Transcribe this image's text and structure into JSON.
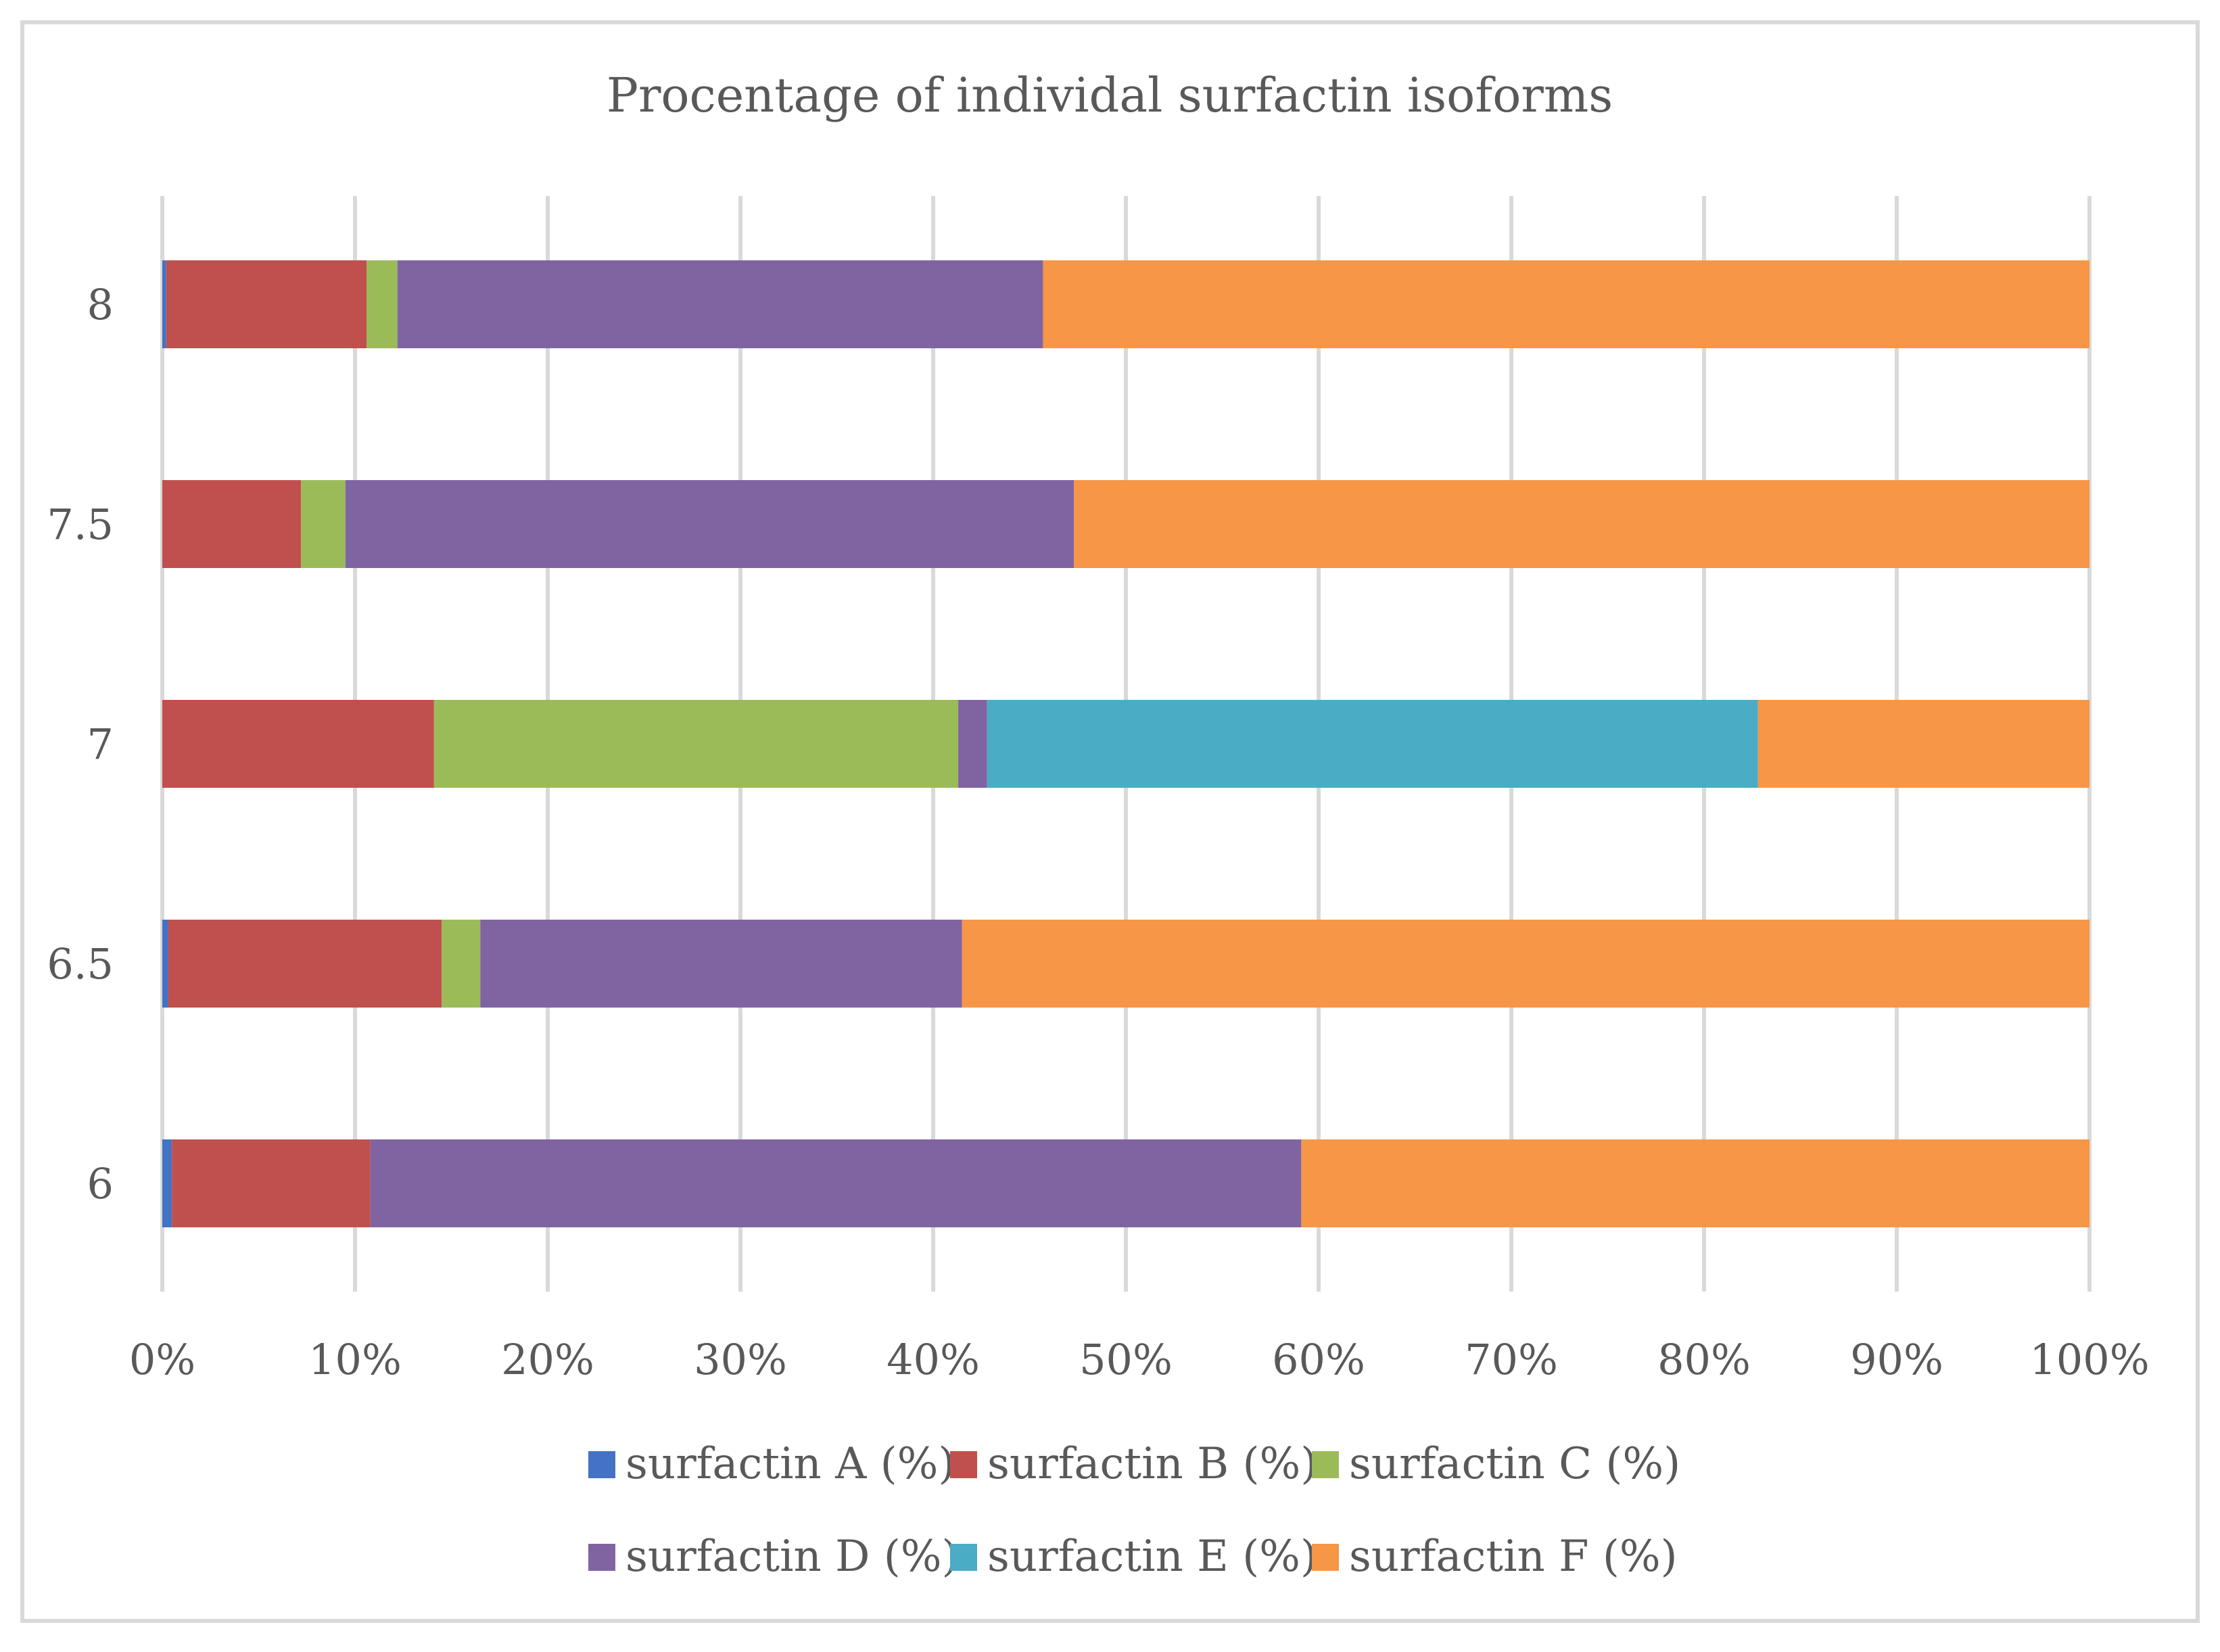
{
  "chart_data": {
    "type": "bar",
    "orientation": "horizontal",
    "stacked": "percent",
    "title": "Procentage of individal surfactin isoforms",
    "xlabel": "",
    "ylabel": "",
    "categories": [
      "6",
      "6.5",
      "7",
      "7.5",
      "8"
    ],
    "xlim": [
      0,
      100
    ],
    "x_ticks": [
      "0%",
      "10%",
      "20%",
      "30%",
      "40%",
      "50%",
      "60%",
      "70%",
      "80%",
      "90%",
      "100%"
    ],
    "grid": true,
    "legend_position": "bottom",
    "series": [
      {
        "name": "surfactin A (%)",
        "color": "#4472C4",
        "values": [
          0.5,
          0.3,
          0.0,
          0.0,
          0.2
        ]
      },
      {
        "name": "surfactin B (%)",
        "color": "#C0504D",
        "values": [
          10.3,
          14.2,
          14.1,
          7.2,
          10.4
        ]
      },
      {
        "name": "surfactin C (%)",
        "color": "#9BBB59",
        "values": [
          0.0,
          2.0,
          27.2,
          2.3,
          1.6
        ]
      },
      {
        "name": "surfactin D (%)",
        "color": "#8064A2",
        "values": [
          48.3,
          25.0,
          1.5,
          37.8,
          33.5
        ]
      },
      {
        "name": "surfactin E (%)",
        "color": "#4BACC6",
        "values": [
          0.0,
          0.0,
          40.0,
          0.0,
          0.0
        ]
      },
      {
        "name": "surfactin F (%)",
        "color": "#F79646",
        "values": [
          40.9,
          58.5,
          17.2,
          52.7,
          54.3
        ]
      }
    ]
  }
}
